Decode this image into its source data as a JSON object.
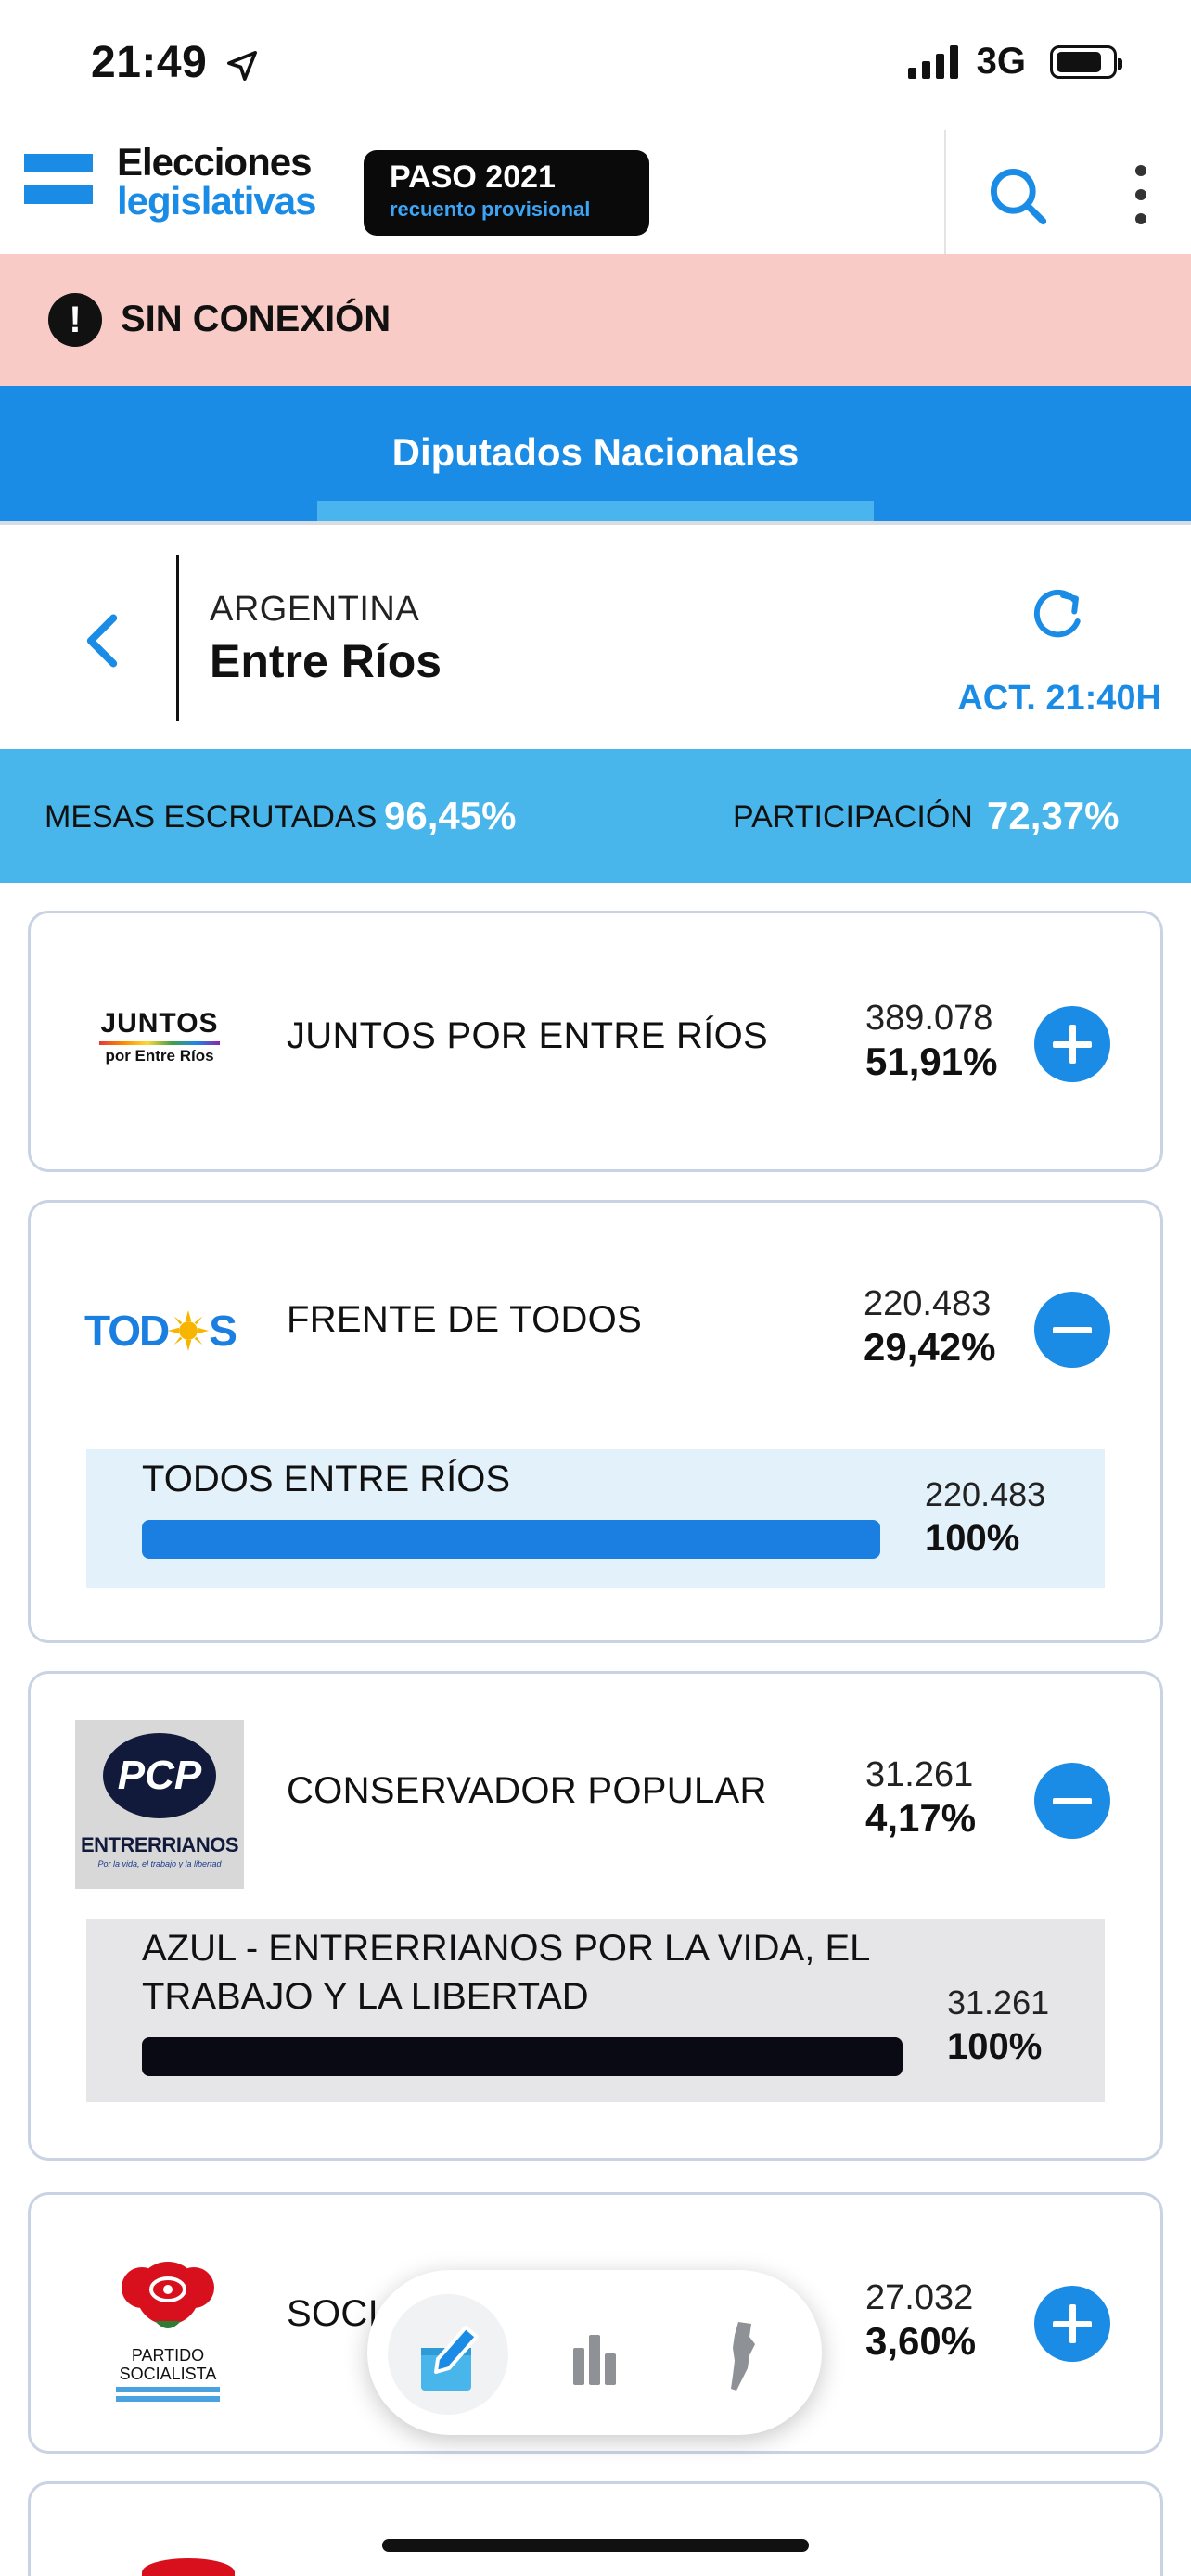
{
  "status_bar": {
    "time": "21:49",
    "network": "3G"
  },
  "header": {
    "logo_line1": "Elecciones",
    "logo_line2": "legislativas",
    "badge_title": "PASO 2021",
    "badge_subtitle": "recuento provisional",
    "icons": {
      "search": "search-icon",
      "more": "more-vertical-icon"
    }
  },
  "offline_banner": {
    "icon": "!",
    "text": "SIN CONEXIÓN"
  },
  "tabs": [
    {
      "label": "Diputados Nacionales",
      "active": true
    }
  ],
  "location": {
    "country": "ARGENTINA",
    "province": "Entre Ríos",
    "updated": "ACT. 21:40H"
  },
  "stats": {
    "mesas_label": "MESAS ESCRUTADAS",
    "mesas_value": "96,45%",
    "participacion_label": "PARTICIPACIÓN",
    "participacion_value": "72,37%"
  },
  "parties": [
    {
      "name": "JUNTOS POR ENTRE RÍOS",
      "votes": "389.078",
      "pct": "51,91%",
      "expanded": false,
      "logo": {
        "line1": "JUNTOS",
        "line2": "por Entre Ríos"
      }
    },
    {
      "name": "FRENTE DE TODOS",
      "votes": "220.483",
      "pct": "29,42%",
      "expanded": true,
      "logo": {
        "left": "TOD",
        "right": "S"
      },
      "lists": [
        {
          "name": "TODOS ENTRE RÍOS",
          "votes": "220.483",
          "pct": "100%",
          "fraction": 1.0,
          "color": "#1a7fe0",
          "bg": "#e3f1fb"
        }
      ]
    },
    {
      "name": "CONSERVADOR POPULAR",
      "votes": "31.261",
      "pct": "4,17%",
      "expanded": true,
      "logo": {
        "mark": "PCP",
        "line1": "ENTRERRIANOS",
        "line2": "Por la vida, el trabajo y la libertad"
      },
      "lists": [
        {
          "name_line1": "AZUL - ENTRERRIANOS POR LA VIDA, EL",
          "name_line2": "TRABAJO Y LA LIBERTAD",
          "votes": "31.261",
          "pct": "100%",
          "fraction": 1.0,
          "color": "#0a0a14",
          "bg": "#e6e6e8"
        }
      ]
    },
    {
      "name": "SOCIA",
      "votes": "27.032",
      "pct": "3,60%",
      "expanded": false,
      "logo": {
        "line1": "PARTIDO",
        "line2": "SOCIALISTA"
      }
    }
  ],
  "bottom_nav": [
    {
      "icon": "vote-icon",
      "active": true
    },
    {
      "icon": "bar-chart-icon",
      "active": false
    },
    {
      "icon": "argentina-map-icon",
      "active": false
    }
  ]
}
